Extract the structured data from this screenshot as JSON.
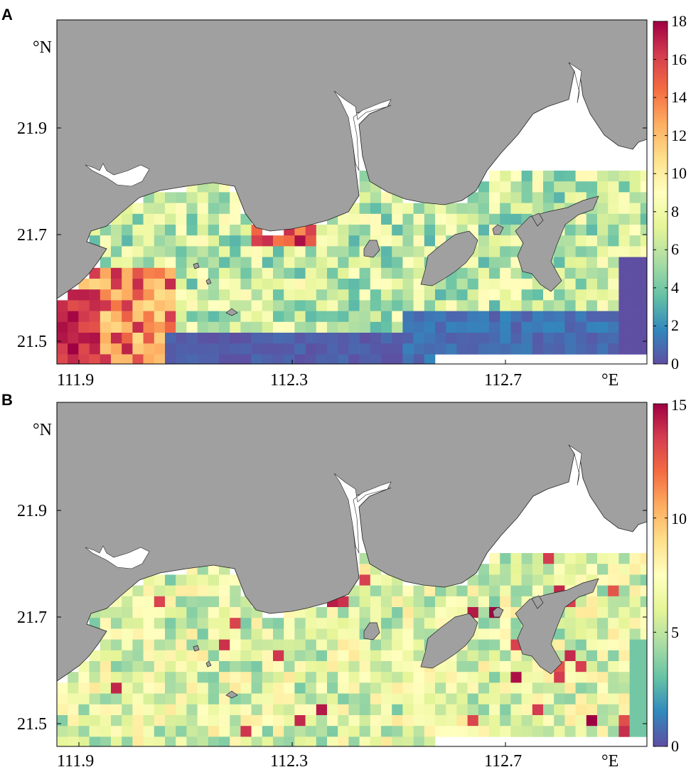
{
  "panels": [
    {
      "letter": "A",
      "lat_ticks": [
        "21.9",
        "21.7",
        "21.5"
      ],
      "lon_ticks": [
        "111.9",
        "112.3",
        "112.7"
      ],
      "lat_unit": "°N",
      "lon_unit": "°E",
      "colorbar_ticks": [
        "18",
        "16",
        "14",
        "12",
        "10",
        "8",
        "6",
        "4",
        "2",
        "0"
      ],
      "colorbar_range": [
        0,
        18
      ]
    },
    {
      "letter": "B",
      "lat_ticks": [
        "21.9",
        "21.7",
        "21.5"
      ],
      "lon_ticks": [
        "111.9",
        "112.3",
        "112.7"
      ],
      "lat_unit": "°N",
      "lon_unit": "°E",
      "colorbar_ticks": [
        "15",
        "10",
        "5",
        "0"
      ],
      "colorbar_range": [
        0,
        15
      ]
    }
  ],
  "colors": {
    "land": "#a0a0a0",
    "colormap": [
      "#5e4fa2",
      "#3288bd",
      "#66c2a5",
      "#abdda4",
      "#e6f598",
      "#ffffbf",
      "#fee08b",
      "#fdae61",
      "#f46d43",
      "#d53e4f",
      "#9e0142"
    ]
  }
}
